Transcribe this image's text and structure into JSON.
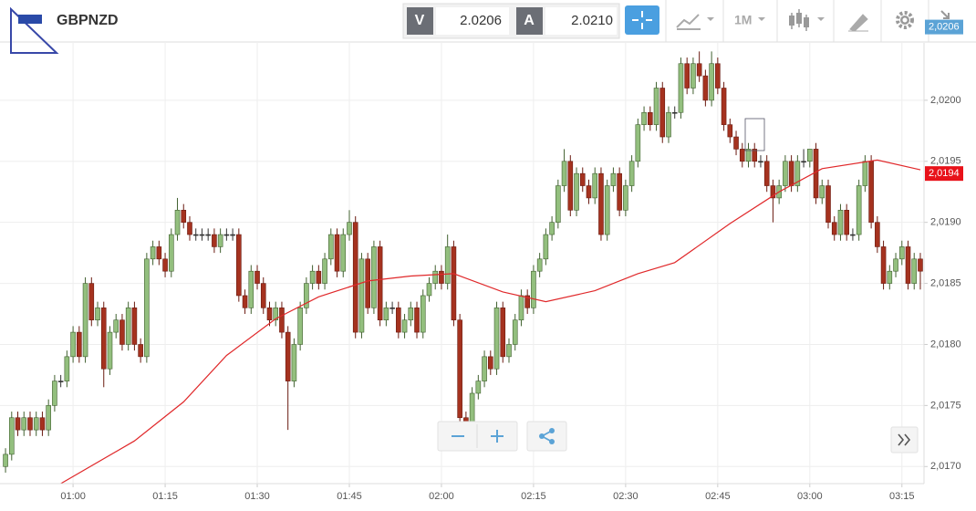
{
  "toolbar": {
    "symbol": "GBPNZD",
    "bid_label": "V",
    "bid": "2.0206",
    "ask_label": "A",
    "ask": "2.0210",
    "timeframe": "1M"
  },
  "chart_data": {
    "type": "candlestick",
    "x": [
      49,
      50,
      51,
      52,
      53,
      54,
      55,
      56,
      57,
      58,
      59,
      60,
      61,
      62,
      63,
      64,
      65,
      66,
      67,
      68,
      69,
      70,
      71,
      72,
      73,
      74,
      75,
      76,
      77,
      78,
      79,
      80,
      81,
      82,
      83,
      84,
      85,
      86,
      87,
      88,
      89,
      90,
      91,
      92,
      93,
      94,
      95,
      96,
      97,
      98,
      99,
      100,
      101,
      102,
      103,
      104,
      105,
      106,
      107,
      108,
      109,
      110,
      111,
      112,
      113,
      114,
      115,
      116,
      117,
      118,
      119,
      120,
      121,
      122,
      123,
      124,
      125,
      126,
      127,
      128,
      129,
      130,
      131,
      132,
      133,
      134,
      135,
      136,
      137,
      138,
      139,
      140,
      141,
      142,
      143,
      144,
      145,
      146,
      147,
      148,
      149,
      150,
      151,
      152,
      153,
      154,
      155,
      156,
      157,
      158,
      159,
      160,
      161,
      162,
      163,
      164,
      165,
      166,
      167,
      168,
      169,
      170,
      171,
      172,
      173,
      174,
      175,
      176,
      177,
      178,
      179,
      180,
      181,
      182,
      183,
      184,
      185,
      186,
      187,
      188,
      189,
      190,
      191,
      192,
      193,
      194,
      195,
      196,
      197,
      198
    ],
    "ohlc": [
      [
        2.017,
        2.01715,
        2.01695,
        2.0171
      ],
      [
        2.0171,
        2.01745,
        2.01705,
        2.0174
      ],
      [
        2.0174,
        2.01745,
        2.01725,
        2.0173
      ],
      [
        2.0173,
        2.01745,
        2.01725,
        2.0174
      ],
      [
        2.0174,
        2.01745,
        2.01725,
        2.0173
      ],
      [
        2.0173,
        2.01745,
        2.01725,
        2.0174
      ],
      [
        2.0174,
        2.01745,
        2.01725,
        2.0173
      ],
      [
        2.0173,
        2.01755,
        2.01725,
        2.0175
      ],
      [
        2.0175,
        2.01775,
        2.01745,
        2.0177
      ],
      [
        2.0177,
        2.01775,
        2.01765,
        2.0177
      ],
      [
        2.0177,
        2.01795,
        2.01765,
        2.0179
      ],
      [
        2.0179,
        2.01815,
        2.01785,
        2.0181
      ],
      [
        2.0181,
        2.01815,
        2.01785,
        2.0179
      ],
      [
        2.0179,
        2.01855,
        2.01785,
        2.0185
      ],
      [
        2.0185,
        2.01855,
        2.01815,
        2.0182
      ],
      [
        2.0182,
        2.01835,
        2.01815,
        2.0183
      ],
      [
        2.0183,
        2.01835,
        2.01765,
        2.0178
      ],
      [
        2.0178,
        2.01815,
        2.01775,
        2.0181
      ],
      [
        2.0181,
        2.01825,
        2.01805,
        2.0182
      ],
      [
        2.0182,
        2.01825,
        2.01795,
        2.018
      ],
      [
        2.018,
        2.01835,
        2.01795,
        2.0183
      ],
      [
        2.0183,
        2.01835,
        2.01795,
        2.018
      ],
      [
        2.018,
        2.01805,
        2.01785,
        2.0179
      ],
      [
        2.0179,
        2.01875,
        2.01785,
        2.0187
      ],
      [
        2.0187,
        2.01885,
        2.01865,
        2.0188
      ],
      [
        2.0188,
        2.01885,
        2.01865,
        2.0187
      ],
      [
        2.0187,
        2.01875,
        2.01855,
        2.0186
      ],
      [
        2.0186,
        2.01895,
        2.01855,
        2.0189
      ],
      [
        2.0189,
        2.0192,
        2.01885,
        2.0191
      ],
      [
        2.0191,
        2.01915,
        2.01895,
        2.019
      ],
      [
        2.019,
        2.01905,
        2.01885,
        2.0189
      ],
      [
        2.0189,
        2.01895,
        2.01885,
        2.0189
      ],
      [
        2.0189,
        2.01895,
        2.01885,
        2.0189
      ],
      [
        2.0189,
        2.01895,
        2.01885,
        2.0189
      ],
      [
        2.0189,
        2.01895,
        2.01875,
        2.0188
      ],
      [
        2.0188,
        2.01895,
        2.01875,
        2.0189
      ],
      [
        2.0189,
        2.01895,
        2.01885,
        2.0189
      ],
      [
        2.0189,
        2.01895,
        2.01885,
        2.0189
      ],
      [
        2.0189,
        2.01895,
        2.01835,
        2.0184
      ],
      [
        2.0184,
        2.01845,
        2.01825,
        2.0183
      ],
      [
        2.0183,
        2.01865,
        2.01825,
        2.0186
      ],
      [
        2.0186,
        2.01865,
        2.01845,
        2.0185
      ],
      [
        2.0185,
        2.01855,
        2.01825,
        2.0183
      ],
      [
        2.0183,
        2.01835,
        2.01815,
        2.0182
      ],
      [
        2.0182,
        2.01835,
        2.01815,
        2.0183
      ],
      [
        2.0183,
        2.01835,
        2.01805,
        2.0181
      ],
      [
        2.0181,
        2.01815,
        2.0173,
        2.0177
      ],
      [
        2.0177,
        2.01805,
        2.01765,
        2.018
      ],
      [
        2.018,
        2.01835,
        2.01795,
        2.0183
      ],
      [
        2.0183,
        2.01855,
        2.01825,
        2.0185
      ],
      [
        2.0185,
        2.01865,
        2.01845,
        2.0186
      ],
      [
        2.0186,
        2.01865,
        2.01845,
        2.0185
      ],
      [
        2.0185,
        2.01875,
        2.01845,
        2.0187
      ],
      [
        2.0187,
        2.01895,
        2.01865,
        2.0189
      ],
      [
        2.0189,
        2.01895,
        2.01855,
        2.0186
      ],
      [
        2.0186,
        2.01895,
        2.01855,
        2.0189
      ],
      [
        2.0189,
        2.0191,
        2.01885,
        2.019
      ],
      [
        2.019,
        2.01905,
        2.01805,
        2.0181
      ],
      [
        2.0181,
        2.01875,
        2.01805,
        2.0187
      ],
      [
        2.0187,
        2.01875,
        2.01825,
        2.0183
      ],
      [
        2.0183,
        2.01885,
        2.01825,
        2.0188
      ],
      [
        2.0188,
        2.01885,
        2.01815,
        2.0182
      ],
      [
        2.0182,
        2.01835,
        2.01815,
        2.0183
      ],
      [
        2.0183,
        2.01835,
        2.01825,
        2.0183
      ],
      [
        2.0183,
        2.01835,
        2.01805,
        2.0181
      ],
      [
        2.0181,
        2.01825,
        2.01805,
        2.0182
      ],
      [
        2.0182,
        2.01835,
        2.01815,
        2.0183
      ],
      [
        2.0183,
        2.01835,
        2.01805,
        2.0181
      ],
      [
        2.0181,
        2.01845,
        2.01805,
        2.0184
      ],
      [
        2.0184,
        2.01855,
        2.01835,
        2.0185
      ],
      [
        2.0185,
        2.01865,
        2.01845,
        2.0186
      ],
      [
        2.0186,
        2.01865,
        2.01845,
        2.0185
      ],
      [
        2.0185,
        2.0189,
        2.01845,
        2.0188
      ],
      [
        2.0188,
        2.01885,
        2.01815,
        2.0182
      ],
      [
        2.0182,
        2.01825,
        2.0173,
        2.0174
      ],
      [
        2.0174,
        2.01745,
        2.01725,
        2.0173
      ],
      [
        2.0173,
        2.01765,
        2.01725,
        2.0176
      ],
      [
        2.0176,
        2.01775,
        2.01755,
        2.0177
      ],
      [
        2.0177,
        2.01795,
        2.01765,
        2.0179
      ],
      [
        2.0179,
        2.01795,
        2.01775,
        2.0178
      ],
      [
        2.0178,
        2.01835,
        2.01775,
        2.0183
      ],
      [
        2.0183,
        2.01835,
        2.01785,
        2.0179
      ],
      [
        2.0179,
        2.01805,
        2.01785,
        2.018
      ],
      [
        2.018,
        2.01825,
        2.01795,
        2.0182
      ],
      [
        2.0182,
        2.01845,
        2.01815,
        2.0184
      ],
      [
        2.0184,
        2.01845,
        2.01825,
        2.0183
      ],
      [
        2.0183,
        2.01865,
        2.01825,
        2.0186
      ],
      [
        2.0186,
        2.01875,
        2.01855,
        2.0187
      ],
      [
        2.0187,
        2.01895,
        2.01865,
        2.0189
      ],
      [
        2.0189,
        2.01905,
        2.01885,
        2.019
      ],
      [
        2.019,
        2.01935,
        2.01895,
        2.0193
      ],
      [
        2.0193,
        2.0196,
        2.01925,
        2.0195
      ],
      [
        2.0195,
        2.01955,
        2.01905,
        2.0191
      ],
      [
        2.0191,
        2.01945,
        2.01905,
        2.0194
      ],
      [
        2.0194,
        2.01945,
        2.01925,
        2.0193
      ],
      [
        2.0193,
        2.01935,
        2.01915,
        2.0192
      ],
      [
        2.0192,
        2.01945,
        2.01915,
        2.0194
      ],
      [
        2.0194,
        2.01945,
        2.01885,
        2.0189
      ],
      [
        2.0189,
        2.01935,
        2.01885,
        2.0193
      ],
      [
        2.0193,
        2.01945,
        2.01925,
        2.0194
      ],
      [
        2.0194,
        2.01945,
        2.01905,
        2.0191
      ],
      [
        2.0191,
        2.01935,
        2.01905,
        2.0193
      ],
      [
        2.0193,
        2.01955,
        2.01925,
        2.0195
      ],
      [
        2.0195,
        2.01985,
        2.01945,
        2.0198
      ],
      [
        2.0198,
        2.01995,
        2.01975,
        2.0199
      ],
      [
        2.0199,
        2.01995,
        2.01975,
        2.0198
      ],
      [
        2.0198,
        2.02015,
        2.01975,
        2.0201
      ],
      [
        2.0201,
        2.02015,
        2.01965,
        2.0197
      ],
      [
        2.0197,
        2.01995,
        2.01965,
        2.0199
      ],
      [
        2.0199,
        2.01995,
        2.01985,
        2.0199
      ],
      [
        2.0199,
        2.02035,
        2.01985,
        2.0203
      ],
      [
        2.0203,
        2.02035,
        2.02005,
        2.0201
      ],
      [
        2.0201,
        2.02035,
        2.02005,
        2.0203
      ],
      [
        2.0203,
        2.0204,
        2.02015,
        2.0202
      ],
      [
        2.0202,
        2.02025,
        2.01995,
        2.02
      ],
      [
        2.02,
        2.0204,
        2.01995,
        2.0203
      ],
      [
        2.0203,
        2.02035,
        2.02005,
        2.0201
      ],
      [
        2.0201,
        2.02015,
        2.01975,
        2.0198
      ],
      [
        2.0198,
        2.01985,
        2.01965,
        2.0197
      ],
      [
        2.0197,
        2.01975,
        2.01955,
        2.0196
      ],
      [
        2.0196,
        2.01965,
        2.01945,
        2.0195
      ],
      [
        2.0195,
        2.01965,
        2.01945,
        2.0196
      ],
      [
        2.0196,
        2.01965,
        2.01945,
        2.0195
      ],
      [
        2.0195,
        2.01955,
        2.01945,
        2.0195
      ],
      [
        2.0195,
        2.01955,
        2.01925,
        2.0193
      ],
      [
        2.0193,
        2.01935,
        2.019,
        2.0192
      ],
      [
        2.0192,
        2.01935,
        2.01915,
        2.0193
      ],
      [
        2.0193,
        2.01955,
        2.01925,
        2.0195
      ],
      [
        2.0195,
        2.01955,
        2.01925,
        2.0193
      ],
      [
        2.0193,
        2.01955,
        2.01925,
        2.0195
      ],
      [
        2.0195,
        2.0196,
        2.01945,
        2.0195
      ],
      [
        2.0195,
        2.0196,
        2.01945,
        2.0196
      ],
      [
        2.0196,
        2.01965,
        2.01915,
        2.0192
      ],
      [
        2.0192,
        2.01935,
        2.01915,
        2.0193
      ],
      [
        2.0193,
        2.01935,
        2.01895,
        2.019
      ],
      [
        2.019,
        2.01905,
        2.01885,
        2.0189
      ],
      [
        2.0189,
        2.01915,
        2.01885,
        2.0191
      ],
      [
        2.0191,
        2.01915,
        2.01885,
        2.0189
      ],
      [
        2.0189,
        2.01895,
        2.01885,
        2.0189
      ],
      [
        2.0189,
        2.01935,
        2.01885,
        2.0193
      ],
      [
        2.0193,
        2.01955,
        2.01925,
        2.0195
      ],
      [
        2.0195,
        2.01955,
        2.01895,
        2.019
      ],
      [
        2.019,
        2.01905,
        2.01875,
        2.0188
      ],
      [
        2.0188,
        2.01885,
        2.01845,
        2.0185
      ],
      [
        2.0185,
        2.01865,
        2.01845,
        2.0186
      ],
      [
        2.0186,
        2.01875,
        2.01855,
        2.0187
      ],
      [
        2.0187,
        2.01885,
        2.01865,
        2.0188
      ],
      [
        2.0188,
        2.01885,
        2.01845,
        2.0185
      ],
      [
        2.0185,
        2.01875,
        2.01845,
        2.0187
      ],
      [
        2.0187,
        2.01875,
        2.01845,
        2.0186
      ]
    ],
    "xlim": [
      48.1,
      198.6
    ],
    "xticks": [
      {
        "value": 60,
        "label": "01:00"
      },
      {
        "value": 75,
        "label": "01:15"
      },
      {
        "value": 90,
        "label": "01:30"
      },
      {
        "value": 105,
        "label": "01:45"
      },
      {
        "value": 120,
        "label": "02:00"
      },
      {
        "value": 135,
        "label": "02:15"
      },
      {
        "value": 150,
        "label": "02:30"
      },
      {
        "value": 165,
        "label": "02:45"
      },
      {
        "value": 180,
        "label": "03:00"
      },
      {
        "value": 195,
        "label": "03:15"
      }
    ],
    "ylim": [
      2.01686,
      2.02047
    ],
    "yticks": [
      {
        "value": 2.017,
        "label": "2,0170"
      },
      {
        "value": 2.0175,
        "label": "2,0175"
      },
      {
        "value": 2.018,
        "label": "2,0180"
      },
      {
        "value": 2.0185,
        "label": "2,0185"
      },
      {
        "value": 2.019,
        "label": "2,0190"
      },
      {
        "value": 2.0195,
        "label": "2,0195"
      },
      {
        "value": 2.02,
        "label": "2,0200"
      }
    ],
    "grid": true,
    "up_color": "#93bf7e",
    "down_color": "#a5321f",
    "ma": {
      "color": "#e0282a",
      "x": [
        58,
        70,
        78,
        85,
        93,
        100,
        108,
        115,
        122,
        130,
        137,
        145,
        152,
        158,
        167,
        175,
        182,
        191,
        198
      ],
      "values": [
        2.01686,
        2.01721,
        2.01753,
        2.01791,
        2.01821,
        2.01839,
        2.01852,
        2.01856,
        2.01858,
        2.01843,
        2.01835,
        2.01844,
        2.01858,
        2.01867,
        2.01899,
        2.01925,
        2.01944,
        2.01951,
        2.01943
      ]
    },
    "price_tags": [
      {
        "value": 2.0206,
        "label": "2,0206",
        "color": "#5ba3d6"
      },
      {
        "value": 2.0194,
        "label": "2,0194",
        "color": "#e8121a"
      }
    ]
  }
}
